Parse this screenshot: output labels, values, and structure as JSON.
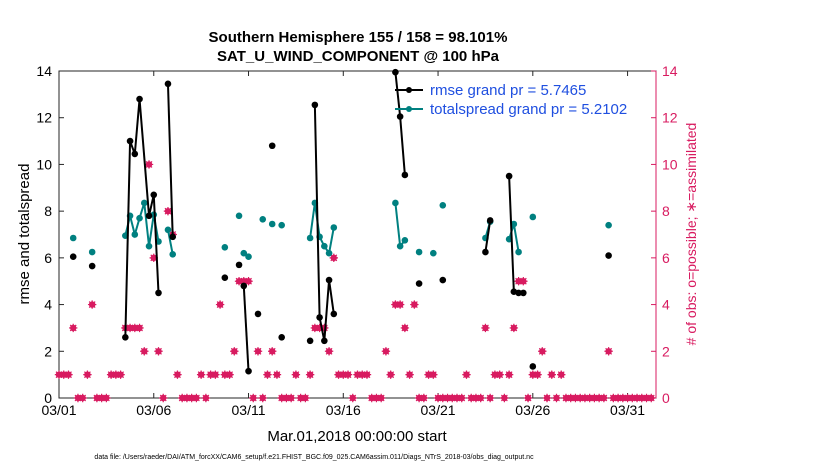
{
  "chart_data": {
    "type": "line",
    "title_line1": "Southern Hemisphere 155 / 158 = 98.101%",
    "title_line2": "SAT_U_WIND_COMPONENT @ 100 hPa",
    "xlabel": "Mar.01,2018 00:00:00 start",
    "ylabel_left": "rmse and totalspread",
    "ylabel_right": "# of obs: o=possible; ∗=assimilated",
    "footnote": "data file: /Users/raeder/DAI/ATM_forcXX/CAM6_setup/f.e21.FHIST_BGC.f09_025.CAM6assim.011/Diags_NTrS_2018-03/obs_diag_output.nc",
    "xlim": [
      1,
      32.5
    ],
    "ylim_left": [
      0,
      14
    ],
    "ylim_right": [
      0,
      14
    ],
    "x_ticks": [
      {
        "value": 1,
        "label": "03/01"
      },
      {
        "value": 6,
        "label": "03/06"
      },
      {
        "value": 11,
        "label": "03/11"
      },
      {
        "value": 16,
        "label": "03/16"
      },
      {
        "value": 21,
        "label": "03/21"
      },
      {
        "value": 26,
        "label": "03/26"
      },
      {
        "value": 31,
        "label": "03/31"
      }
    ],
    "y_ticks_left": [
      0,
      2,
      4,
      6,
      8,
      10,
      12,
      14
    ],
    "y_ticks_right": [
      0,
      2,
      4,
      6,
      8,
      10,
      12,
      14
    ],
    "colors": {
      "rmse": "#000000",
      "totalspread": "#008080",
      "obs": "#d81b60",
      "legend_text": "#1f4fe0",
      "axis": "#262626"
    },
    "legend": [
      {
        "name": "rmse grand pr = 5.7465",
        "series": "rmse"
      },
      {
        "name": "totalspread grand pr = 5.2102",
        "series": "totalspread"
      }
    ],
    "series": [
      {
        "name": "rmse",
        "x": [
          1.75,
          2.75,
          4.5,
          4.75,
          5.0,
          5.25,
          5.75,
          6.0,
          6.25,
          6.75,
          7.0,
          9.75,
          10.5,
          10.75,
          11.0,
          11.5,
          12.25,
          12.75,
          14.25,
          14.5,
          14.75,
          15.0,
          15.25,
          15.5,
          18.75,
          19.0,
          19.25,
          20.0,
          21.25,
          23.5,
          23.75,
          24.75,
          25.0,
          25.25,
          25.5,
          26.0,
          30.0
        ],
        "y": [
          6.05,
          5.65,
          2.6,
          11.0,
          10.45,
          12.8,
          7.8,
          8.7,
          4.5,
          13.45,
          6.9,
          5.15,
          5.7,
          4.8,
          1.15,
          3.6,
          10.8,
          2.6,
          2.45,
          12.55,
          3.45,
          2.45,
          5.05,
          3.6,
          13.95,
          12.05,
          9.55,
          4.9,
          5.05,
          6.25,
          7.6,
          9.5,
          4.55,
          4.5,
          4.5,
          1.35,
          6.1
        ],
        "segments": [
          [
            2,
            3,
            4,
            5,
            6,
            7,
            8
          ],
          [
            9,
            10
          ],
          [
            13,
            14
          ],
          [
            19,
            20,
            21,
            22,
            23
          ],
          [
            24,
            25,
            26
          ],
          [
            29,
            30
          ],
          [
            31,
            32,
            33
          ]
        ]
      },
      {
        "name": "totalspread",
        "x": [
          1.75,
          2.75,
          4.5,
          4.75,
          5.0,
          5.25,
          5.5,
          5.75,
          6.0,
          6.25,
          6.75,
          7.0,
          9.75,
          10.5,
          10.75,
          11.0,
          11.75,
          12.25,
          12.75,
          14.25,
          14.5,
          14.75,
          15.0,
          15.25,
          15.5,
          18.75,
          19.0,
          19.25,
          20.0,
          20.75,
          21.25,
          23.5,
          23.75,
          24.75,
          25.0,
          25.25,
          26.0,
          30.0
        ],
        "y": [
          6.85,
          6.25,
          6.95,
          7.8,
          7.0,
          7.7,
          8.35,
          6.5,
          7.85,
          6.7,
          7.2,
          6.15,
          6.45,
          7.8,
          6.2,
          6.05,
          7.65,
          7.45,
          7.4,
          6.85,
          8.35,
          6.9,
          6.5,
          6.2,
          7.3,
          8.35,
          6.5,
          6.75,
          6.25,
          6.2,
          8.25,
          6.85,
          7.55,
          6.8,
          7.45,
          6.25,
          7.75,
          7.4
        ],
        "segments": [
          [
            2,
            3,
            4,
            5,
            6,
            7,
            8,
            9
          ],
          [
            10,
            11
          ],
          [
            14,
            15
          ],
          [
            19,
            20,
            21,
            22,
            23,
            24
          ],
          [
            25,
            26,
            27
          ],
          [
            31,
            32
          ],
          [
            33,
            34,
            35
          ]
        ]
      },
      {
        "name": "obs_possible",
        "x": [
          1.0,
          1.25,
          1.5,
          1.75,
          2.0,
          2.25,
          2.5,
          2.75,
          3.0,
          3.25,
          3.5,
          3.75,
          4.0,
          4.25,
          4.5,
          4.75,
          5.0,
          5.25,
          5.5,
          5.75,
          6.0,
          6.25,
          6.5,
          6.75,
          7.0,
          7.25,
          7.5,
          7.75,
          8.0,
          8.25,
          8.5,
          8.75,
          9.0,
          9.25,
          9.5,
          9.75,
          10.0,
          10.25,
          10.5,
          10.75,
          11.0,
          11.25,
          11.5,
          11.75,
          12.0,
          12.25,
          12.5,
          12.75,
          13.0,
          13.25,
          13.5,
          13.75,
          14.0,
          14.25,
          14.5,
          14.75,
          15.0,
          15.25,
          15.5,
          15.75,
          16.0,
          16.25,
          16.5,
          16.75,
          17.0,
          17.25,
          17.5,
          17.75,
          18.0,
          18.25,
          18.5,
          18.75,
          19.0,
          19.25,
          19.5,
          19.75,
          20.0,
          20.25,
          20.5,
          20.75,
          21.0,
          21.25,
          21.5,
          21.75,
          22.0,
          22.25,
          22.5,
          22.75,
          23.0,
          23.25,
          23.5,
          23.75,
          24.0,
          24.25,
          24.5,
          24.75,
          25.0,
          25.25,
          25.5,
          25.75,
          26.0,
          26.25,
          26.5,
          26.75,
          27.0,
          27.25,
          27.5,
          27.75,
          28.0,
          28.25,
          28.5,
          28.75,
          29.0,
          29.25,
          29.5,
          29.75,
          30.0,
          30.25,
          30.5,
          30.75,
          31.0,
          31.25,
          31.5,
          31.75,
          32.0,
          32.25
        ],
        "y": [
          1,
          1,
          1,
          3,
          0,
          0,
          1,
          4,
          0,
          0,
          0,
          1,
          1,
          1,
          3,
          3,
          3,
          3,
          2,
          10,
          6,
          2,
          0,
          8,
          7,
          1,
          0,
          0,
          0,
          0,
          1,
          0,
          1,
          1,
          4,
          1,
          1,
          2,
          5,
          5,
          5,
          0,
          2,
          0,
          1,
          2,
          1,
          0,
          0,
          0,
          1,
          0,
          0,
          1,
          3,
          3,
          3,
          2,
          6,
          1,
          1,
          1,
          0,
          1,
          1,
          1,
          0,
          0,
          0,
          2,
          1,
          4,
          4,
          3,
          1,
          4,
          0,
          0,
          1,
          1,
          0,
          0,
          0,
          0,
          0,
          0,
          1,
          0,
          0,
          0,
          3,
          0,
          1,
          1,
          0,
          1,
          3,
          5,
          5,
          0,
          1,
          1,
          2,
          0,
          1,
          0,
          1,
          0,
          0,
          0,
          0,
          0,
          0,
          0,
          0,
          0,
          2,
          0,
          0,
          0,
          0,
          0,
          0,
          0,
          0,
          0
        ],
        "open_markers": [
          [
            19.5,
            4
          ],
          [
            20.0,
            3
          ]
        ]
      },
      {
        "name": "obs_assimilated",
        "description_markers": "same positions as possible; drawn as asterisks",
        "note_x": [
          15.0,
          20.0
        ],
        "note_y": [
          2,
          3
        ]
      }
    ]
  }
}
